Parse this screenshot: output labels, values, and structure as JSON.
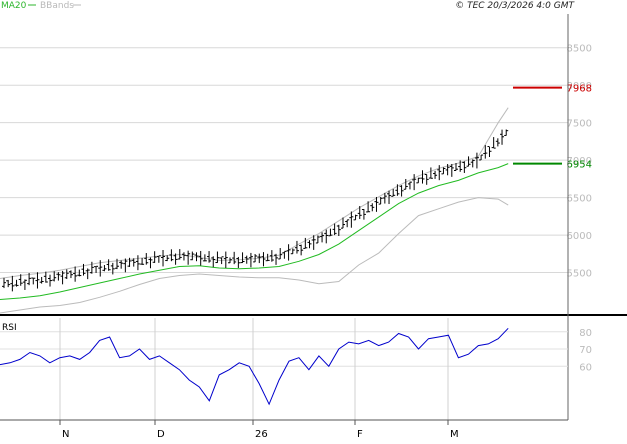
{
  "header": {
    "legend": [
      {
        "label": "MA20",
        "color": "#2db52d"
      },
      {
        "label": "BBands",
        "color": "#b9b9b9"
      }
    ],
    "copyright": "© TEC 20/3/2026 4:0 GMT"
  },
  "markers": {
    "last_price": {
      "label": "7968",
      "value": 7968,
      "color": "#cc0000"
    },
    "ma_value": {
      "label": "6954",
      "value": 6954,
      "color": "#008800"
    }
  },
  "rsi_panel": {
    "label": "RSI"
  },
  "chart_data": [
    {
      "type": "line",
      "title": "",
      "y_ticks": [
        5500,
        6000,
        6500,
        7000,
        7500,
        8000,
        8500
      ],
      "ylim": [
        4960,
        8950
      ],
      "x_ticks": [
        "N",
        "D",
        "26",
        "F",
        "M"
      ],
      "grid": true,
      "legend_placement": "top-left",
      "series": [
        {
          "name": "MA20",
          "color": "#22bb22",
          "x": [
            0,
            20,
            40,
            60,
            80,
            100,
            120,
            140,
            160,
            180,
            200,
            220,
            240,
            260,
            280,
            300,
            320,
            340,
            360,
            380,
            400,
            420,
            440,
            460,
            480,
            500,
            510
          ],
          "y": [
            5140,
            5160,
            5190,
            5240,
            5300,
            5360,
            5420,
            5480,
            5530,
            5580,
            5590,
            5560,
            5550,
            5560,
            5580,
            5650,
            5740,
            5880,
            6060,
            6240,
            6420,
            6560,
            6660,
            6730,
            6830,
            6900,
            6954
          ]
        },
        {
          "name": "BBands",
          "color": "#bbbbbb",
          "x": [
            0,
            20,
            40,
            60,
            80,
            100,
            120,
            140,
            160,
            180,
            200,
            220,
            240,
            260,
            280,
            300,
            320,
            340,
            360,
            380,
            400,
            420,
            440,
            460,
            480,
            500,
            510
          ],
          "y": [
            5420,
            5460,
            5490,
            5530,
            5580,
            5630,
            5660,
            5690,
            5720,
            5740,
            5700,
            5660,
            5670,
            5690,
            5730,
            5880,
            6020,
            6190,
            6360,
            6510,
            6660,
            6790,
            6890,
            6960,
            7050,
            7500,
            7700
          ]
        },
        {
          "name": "BBands lower",
          "color": "#bbbbbb",
          "x": [
            0,
            20,
            40,
            60,
            80,
            100,
            120,
            140,
            160,
            180,
            200,
            220,
            240,
            260,
            280,
            300,
            320,
            340,
            360,
            380,
            400,
            420,
            440,
            460,
            480,
            500,
            510
          ],
          "y": [
            4960,
            5000,
            5040,
            5060,
            5100,
            5170,
            5250,
            5340,
            5420,
            5460,
            5480,
            5460,
            5440,
            5430,
            5430,
            5400,
            5350,
            5380,
            5600,
            5760,
            6020,
            6260,
            6350,
            6440,
            6500,
            6480,
            6400
          ]
        }
      ]
    },
    {
      "type": "line",
      "title": "RSI",
      "y_ticks": [
        60,
        70,
        80
      ],
      "ylim": [
        30,
        88
      ],
      "series": [
        {
          "name": "RSI",
          "color": "#0000cc",
          "x": [
            0,
            10,
            20,
            30,
            40,
            50,
            60,
            70,
            80,
            90,
            100,
            110,
            120,
            130,
            140,
            150,
            160,
            170,
            180,
            190,
            200,
            210,
            220,
            230,
            240,
            250,
            260,
            270,
            280,
            290,
            300,
            310,
            320,
            330,
            340,
            350,
            360,
            370,
            380,
            390,
            400,
            410,
            420,
            430,
            440,
            450,
            460,
            470,
            480,
            490,
            500,
            510
          ],
          "y": [
            61,
            62,
            64,
            68,
            66,
            62,
            65,
            66,
            64,
            68,
            75,
            77,
            65,
            66,
            70,
            64,
            66,
            62,
            58,
            52,
            48,
            40,
            55,
            58,
            62,
            60,
            50,
            38,
            52,
            63,
            65,
            58,
            66,
            60,
            70,
            74,
            73,
            75,
            72,
            74,
            79,
            77,
            70,
            76,
            77,
            78,
            65,
            67,
            72,
            73,
            76,
            82
          ]
        }
      ]
    }
  ]
}
